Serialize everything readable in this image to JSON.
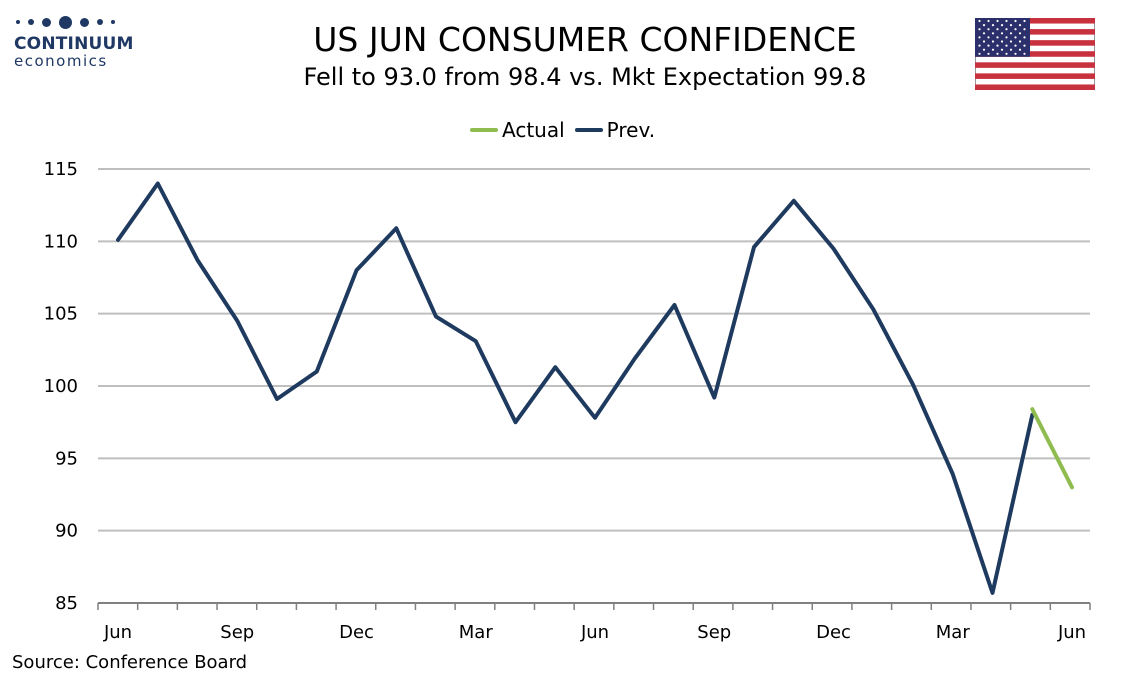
{
  "logo": {
    "brand": "CONTINUUM",
    "sub": "economics"
  },
  "flag_icon": "us-flag-icon",
  "colors": {
    "actual": "#8fbc4f",
    "prev": "#1f3a5f",
    "grid": "#bfbfbf",
    "axis": "#808080",
    "brand": "#1f3864"
  },
  "source": "Source: Conference Board",
  "chart_data": {
    "type": "line",
    "title": "US JUN CONSUMER CONFIDENCE",
    "subtitle": "Fell to 93.0 from 98.4 vs. Mkt Expectation 99.8",
    "legend": [
      "Actual",
      "Prev."
    ],
    "legend_position": "top-center",
    "grid": true,
    "ylim": [
      85,
      115
    ],
    "yticks": [
      85,
      90,
      95,
      100,
      105,
      110,
      115
    ],
    "x_tick_labels": [
      "Jun",
      "Sep",
      "Dec",
      "Mar",
      "Jun",
      "Sep",
      "Dec",
      "Mar",
      "Jun"
    ],
    "x_tick_indices": [
      0,
      3,
      6,
      9,
      12,
      15,
      18,
      21,
      24
    ],
    "x_count": 25,
    "series": [
      {
        "name": "Prev.",
        "values": [
          110.1,
          114.0,
          108.7,
          104.5,
          99.1,
          101.0,
          108.0,
          110.9,
          104.8,
          103.1,
          97.5,
          101.3,
          97.8,
          101.9,
          105.6,
          99.2,
          109.6,
          112.8,
          109.5,
          105.3,
          100.1,
          93.9,
          85.7,
          98.0,
          null
        ]
      },
      {
        "name": "Actual",
        "values": [
          null,
          null,
          null,
          null,
          null,
          null,
          null,
          null,
          null,
          null,
          null,
          null,
          null,
          null,
          null,
          null,
          null,
          null,
          null,
          null,
          null,
          null,
          null,
          98.4,
          93.0
        ]
      }
    ]
  }
}
